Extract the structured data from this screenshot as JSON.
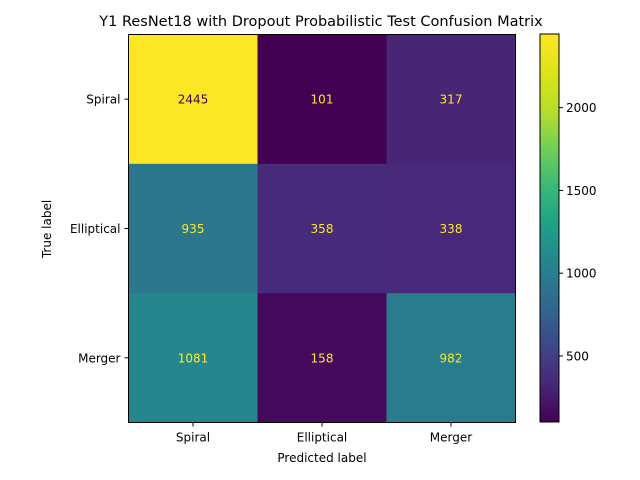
{
  "chart_data": {
    "type": "heatmap",
    "title": "Y1 ResNet18 with Dropout Probabilistic Test Confusion Matrix",
    "xlabel": "Predicted label",
    "ylabel": "True label",
    "x_categories": [
      "Spiral",
      "Elliptical",
      "Merger"
    ],
    "y_categories": [
      "Spiral",
      "Elliptical",
      "Merger"
    ],
    "values": [
      [
        2445,
        101,
        317
      ],
      [
        935,
        358,
        338
      ],
      [
        1081,
        158,
        982
      ]
    ],
    "colormap": "viridis",
    "colorbar": {
      "range": [
        101,
        2445
      ],
      "ticks": [
        500,
        1000,
        1500,
        2000
      ]
    },
    "text_colors": {
      "on_dark": "#fde725",
      "on_light": "#440154"
    }
  }
}
